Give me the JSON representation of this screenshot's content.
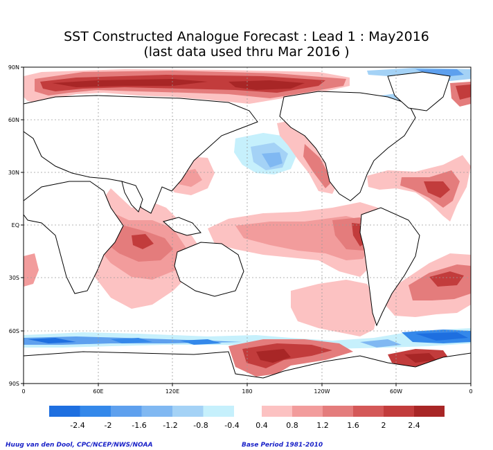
{
  "title": {
    "line1": "SST Constructed Analogue Forecast : Lead 1 : May2016",
    "line2": "(last data used thru Mar 2016 )"
  },
  "map": {
    "lat_labels": [
      "90N",
      "60N",
      "30N",
      "EQ",
      "30S",
      "60S",
      "90S"
    ],
    "lon_labels": [
      "0",
      "60E",
      "120E",
      "180",
      "120W",
      "60W",
      "0"
    ],
    "colors": {
      "land_outline": "#000000",
      "grid": "#9a9a9a",
      "frame": "#000000"
    }
  },
  "colorbar": {
    "labels": [
      "-2.4",
      "-2",
      "-1.6",
      "-1.2",
      "-0.8",
      "-0.4",
      "0.4",
      "0.8",
      "1.2",
      "1.6",
      "2",
      "2.4"
    ],
    "neg_colors": [
      "#1e6fe0",
      "#3488ea",
      "#5ea0ee",
      "#80b8f2",
      "#a4d2f6",
      "#c6f0fc"
    ],
    "pos_colors": [
      "#fcc2c2",
      "#f29c9c",
      "#e47c7c",
      "#d45858",
      "#c23c3c",
      "#a82626"
    ]
  },
  "footer": {
    "credit": "Huug van den Dool, CPC/NCEP/NWS/NOAA",
    "base_period": "Base Period 1981-2010"
  }
}
